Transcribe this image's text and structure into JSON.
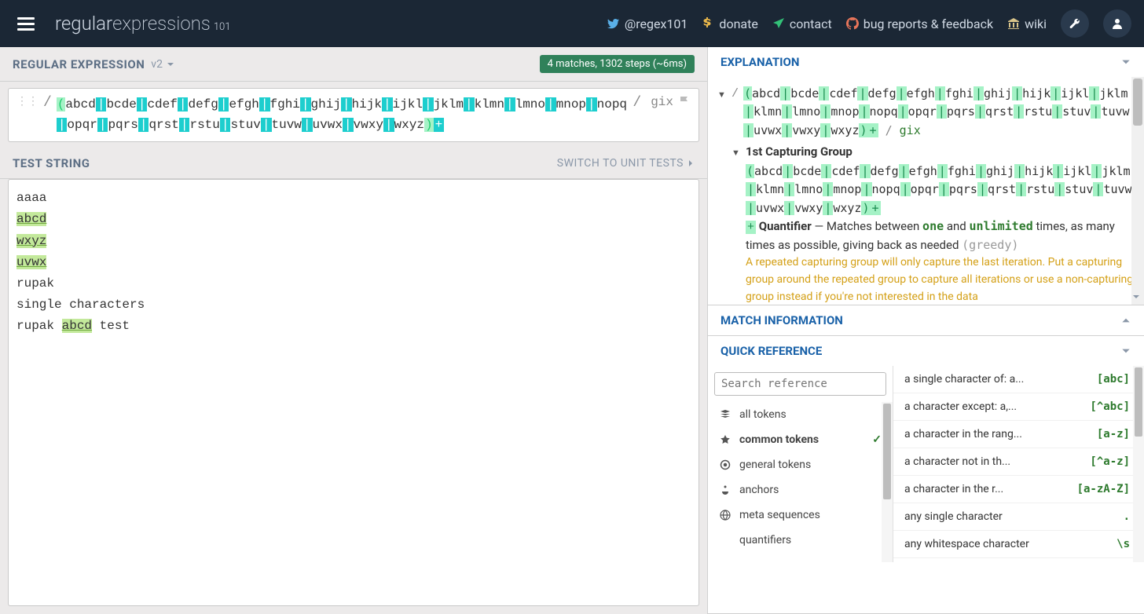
{
  "header": {
    "logo_regular": "regular",
    "logo_expressions": "expressions",
    "logo_sub": "101",
    "nav": [
      {
        "icon": "twitter",
        "label": "@regex101",
        "color": "#5ab0e8"
      },
      {
        "icon": "dollar",
        "label": "donate",
        "color": "#e8b64a"
      },
      {
        "icon": "plane",
        "label": "contact",
        "color": "#33c178"
      },
      {
        "icon": "github",
        "label": "bug reports & feedback",
        "color": "#e8755a"
      },
      {
        "icon": "bank",
        "label": "wiki",
        "color": "#d8c48a"
      }
    ]
  },
  "regex_section": {
    "title": "REGULAR EXPRESSION",
    "version": "v2",
    "badge": "4 matches, 1302 steps (~6ms)",
    "delim_open": "/",
    "delim_close": "/",
    "flags": "gix",
    "tokens": [
      {
        "t": "paren",
        "v": "("
      },
      {
        "t": "lit",
        "v": "abcd"
      },
      {
        "t": "pipe",
        "v": "|"
      },
      {
        "t": "lit",
        "v": "bcde"
      },
      {
        "t": "pipe",
        "v": "|"
      },
      {
        "t": "lit",
        "v": "cdef"
      },
      {
        "t": "pipe",
        "v": "|"
      },
      {
        "t": "lit",
        "v": "defg"
      },
      {
        "t": "pipe",
        "v": "|"
      },
      {
        "t": "lit",
        "v": "efgh"
      },
      {
        "t": "pipe",
        "v": "|"
      },
      {
        "t": "lit",
        "v": "fghi"
      },
      {
        "t": "pipe",
        "v": "|"
      },
      {
        "t": "lit",
        "v": "ghij"
      },
      {
        "t": "pipe",
        "v": "|"
      },
      {
        "t": "lit",
        "v": "hijk"
      },
      {
        "t": "pipe",
        "v": "|"
      },
      {
        "t": "lit",
        "v": "ijkl"
      },
      {
        "t": "pipe",
        "v": "|"
      },
      {
        "t": "lit",
        "v": "jklm"
      },
      {
        "t": "pipe",
        "v": "|"
      },
      {
        "t": "lit",
        "v": "klmn"
      },
      {
        "t": "pipe",
        "v": "|"
      },
      {
        "t": "lit",
        "v": "lmno"
      },
      {
        "t": "pipe",
        "v": "|"
      },
      {
        "t": "lit",
        "v": "mnop"
      },
      {
        "t": "pipe",
        "v": "|"
      },
      {
        "t": "lit",
        "v": "nopq"
      },
      {
        "t": "pipe",
        "v": "|"
      },
      {
        "t": "lit",
        "v": "opqr"
      },
      {
        "t": "pipe",
        "v": "|"
      },
      {
        "t": "lit",
        "v": "pqrs"
      },
      {
        "t": "pipe",
        "v": "|"
      },
      {
        "t": "lit",
        "v": "qrst"
      },
      {
        "t": "pipe",
        "v": "|"
      },
      {
        "t": "lit",
        "v": "rstu"
      },
      {
        "t": "pipe",
        "v": "|"
      },
      {
        "t": "lit",
        "v": "stuv"
      },
      {
        "t": "pipe",
        "v": "|"
      },
      {
        "t": "lit",
        "v": "tuvw"
      },
      {
        "t": "pipe",
        "v": "|"
      },
      {
        "t": "lit",
        "v": "uvwx"
      },
      {
        "t": "pipe",
        "v": "|"
      },
      {
        "t": "lit",
        "v": "vwxy"
      },
      {
        "t": "pipe",
        "v": "|"
      },
      {
        "t": "lit",
        "v": "wxyz"
      },
      {
        "t": "paren",
        "v": ")"
      },
      {
        "t": "plus",
        "v": "+"
      }
    ]
  },
  "test_section": {
    "title": "TEST STRING",
    "switch_label": "SWITCH TO UNIT TESTS",
    "lines": [
      [
        {
          "m": false,
          "v": "aaaa"
        }
      ],
      [
        {
          "m": true,
          "v": "abcd"
        }
      ],
      [
        {
          "m": true,
          "v": "wxyz"
        }
      ],
      [
        {
          "m": true,
          "v": "uvwx"
        }
      ],
      [
        {
          "m": false,
          "v": "rupak"
        }
      ],
      [
        {
          "m": false,
          "v": "single characters"
        }
      ],
      [
        {
          "m": false,
          "v": "rupak "
        },
        {
          "m": true,
          "v": "abcd"
        },
        {
          "m": false,
          "v": " test"
        }
      ]
    ]
  },
  "explanation": {
    "title": "EXPLANATION",
    "flags_sep": " / ",
    "flags": "gix",
    "group_label": "1st Capturing Group",
    "quant_label": "Quantifier",
    "quant_desc1": " — Matches between ",
    "quant_one": "one",
    "quant_desc2": " and ",
    "quant_unl": "unlimited",
    "quant_desc3": " times, as many times as possible, giving back as needed ",
    "greedy": "(greedy)",
    "warning": "A repeated capturing group will only capture the last iteration. Put a capturing group around the repeated group to capture all iterations or use a non-capturing group instead if you're not interested in the data"
  },
  "match_info": {
    "title": "MATCH INFORMATION"
  },
  "quick_ref": {
    "title": "QUICK REFERENCE",
    "search_placeholder": "Search reference",
    "categories": [
      {
        "icon": "stack",
        "label": "all tokens",
        "active": false
      },
      {
        "icon": "star",
        "label": "common tokens",
        "active": true
      },
      {
        "icon": "target",
        "label": "general tokens",
        "active": false
      },
      {
        "icon": "anchor",
        "label": "anchors",
        "active": false
      },
      {
        "icon": "globe",
        "label": "meta sequences",
        "active": false
      },
      {
        "icon": "asterisk",
        "label": "quantifiers",
        "active": false
      }
    ],
    "items": [
      {
        "desc": "a single character of: a...",
        "code": "[abc]"
      },
      {
        "desc": "a character except: a,...",
        "code": "[^abc]"
      },
      {
        "desc": "a character in the rang...",
        "code": "[a-z]"
      },
      {
        "desc": "a character not in th...",
        "code": "[^a-z]"
      },
      {
        "desc": "a character in the r...",
        "code": "[a-zA-Z]"
      },
      {
        "desc": "any single character",
        "code": "."
      },
      {
        "desc": "any whitespace character",
        "code": "\\s"
      }
    ]
  },
  "colors": {
    "header_bg": "#1b2735",
    "accent": "#1961a8",
    "badge_bg": "#30815a",
    "match_bg": "#c3e99b",
    "pipe_bg": "#1dcece",
    "paren_bg": "#a5f2c6"
  }
}
